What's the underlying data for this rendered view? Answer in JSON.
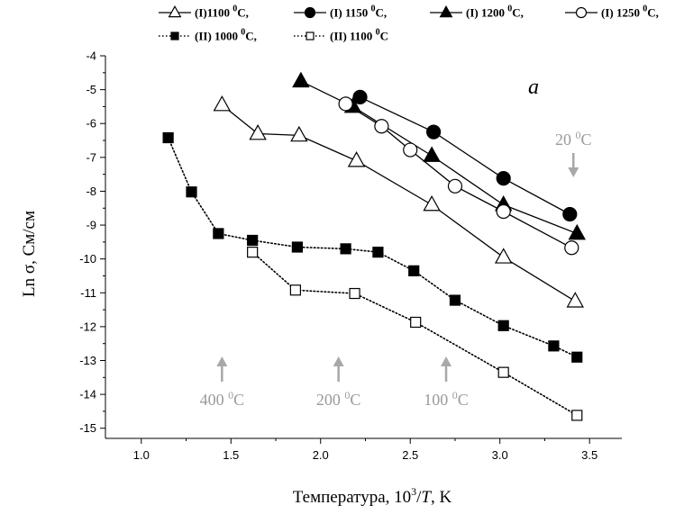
{
  "chart_data": {
    "type": "line",
    "panel_label": "a",
    "xlabel": "Температура, 10^3/T, K",
    "ylabel": "Ln σ, См/см",
    "xlim": [
      0.8,
      3.68
    ],
    "ylim": [
      -15.3,
      -4
    ],
    "x_ticks": [
      "1.0",
      "1.5",
      "2.0",
      "2.5",
      "3.0",
      "3.5"
    ],
    "y_ticks": [
      "-4",
      "-5",
      "-6",
      "-7",
      "-8",
      "-9",
      "-10",
      "-11",
      "-12",
      "-13",
      "-14",
      "-15"
    ],
    "grid": false,
    "legend_position": "top",
    "series": [
      {
        "name": "(I)1100 ⁰C,",
        "marker": "triangle-open",
        "line": "solid",
        "points": [
          [
            1.45,
            -5.45
          ],
          [
            1.65,
            -6.3
          ],
          [
            1.88,
            -6.35
          ],
          [
            2.2,
            -7.1
          ],
          [
            2.62,
            -8.4
          ],
          [
            3.02,
            -9.95
          ],
          [
            3.42,
            -11.25
          ]
        ]
      },
      {
        "name": "(I) 1150 ⁰C,",
        "marker": "circle-filled",
        "line": "solid",
        "points": [
          [
            2.22,
            -5.22
          ],
          [
            2.63,
            -6.25
          ],
          [
            3.02,
            -7.62
          ],
          [
            3.39,
            -8.68
          ]
        ]
      },
      {
        "name": "(I) 1200 ⁰C,",
        "marker": "triangle-filled",
        "line": "solid",
        "points": [
          [
            1.89,
            -4.75
          ],
          [
            2.18,
            -5.5
          ],
          [
            2.62,
            -6.95
          ],
          [
            3.02,
            -8.4
          ],
          [
            3.43,
            -9.25
          ]
        ]
      },
      {
        "name": "(I) 1250 ⁰C,",
        "marker": "circle-open",
        "line": "solid",
        "points": [
          [
            2.14,
            -5.42
          ],
          [
            2.34,
            -6.08
          ],
          [
            2.5,
            -6.78
          ],
          [
            2.75,
            -7.85
          ],
          [
            3.02,
            -8.6
          ],
          [
            3.4,
            -9.67
          ]
        ]
      },
      {
        "name": "(II) 1000 ⁰C,",
        "marker": "square-filled",
        "line": "dotted",
        "points": [
          [
            1.15,
            -6.42
          ],
          [
            1.28,
            -8.02
          ],
          [
            1.43,
            -9.25
          ],
          [
            1.62,
            -9.45
          ],
          [
            1.87,
            -9.65
          ],
          [
            2.14,
            -9.7
          ],
          [
            2.32,
            -9.8
          ],
          [
            2.52,
            -10.35
          ],
          [
            2.75,
            -11.22
          ],
          [
            3.02,
            -11.97
          ],
          [
            3.3,
            -12.57
          ],
          [
            3.43,
            -12.9
          ]
        ]
      },
      {
        "name": "(II) 1100 ⁰C",
        "marker": "square-open",
        "line": "dotted",
        "points": [
          [
            1.62,
            -9.8
          ],
          [
            1.86,
            -10.92
          ],
          [
            2.19,
            -11.02
          ],
          [
            2.53,
            -11.87
          ],
          [
            3.02,
            -13.35
          ],
          [
            3.43,
            -14.62
          ]
        ]
      }
    ],
    "annotations": [
      {
        "text": "400 ⁰C",
        "arrow_x": 1.45,
        "arrow_dir": "up"
      },
      {
        "text": "200 ⁰C",
        "arrow_x": 2.1,
        "arrow_dir": "up"
      },
      {
        "text": "100 ⁰C",
        "arrow_x": 2.7,
        "arrow_dir": "up"
      },
      {
        "text": "20 ⁰C",
        "arrow_x": 3.41,
        "arrow_dir": "down"
      }
    ]
  }
}
